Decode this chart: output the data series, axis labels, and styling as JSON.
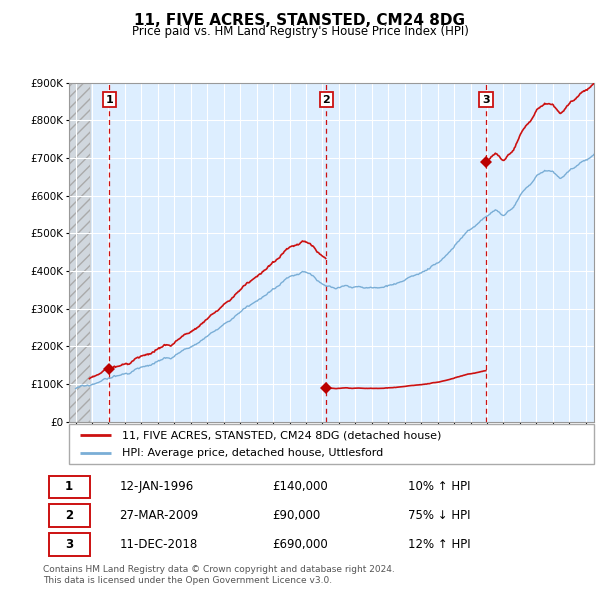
{
  "title": "11, FIVE ACRES, STANSTED, CM24 8DG",
  "subtitle": "Price paid vs. HM Land Registry's House Price Index (HPI)",
  "legend_line1": "11, FIVE ACRES, STANSTED, CM24 8DG (detached house)",
  "legend_line2": "HPI: Average price, detached house, Uttlesford",
  "sale_points": [
    {
      "date": 1996.04,
      "price": 140000,
      "label": "1"
    },
    {
      "date": 2009.23,
      "price": 90000,
      "label": "2"
    },
    {
      "date": 2018.94,
      "price": 690000,
      "label": "3"
    }
  ],
  "table_rows": [
    [
      "1",
      "12-JAN-1996",
      "£140,000",
      "10% ↑ HPI"
    ],
    [
      "2",
      "27-MAR-2009",
      "£90,000",
      "75% ↓ HPI"
    ],
    [
      "3",
      "11-DEC-2018",
      "£690,000",
      "12% ↑ HPI"
    ]
  ],
  "footer": "Contains HM Land Registry data © Crown copyright and database right 2024.\nThis data is licensed under the Open Government Licence v3.0.",
  "hpi_color": "#7aaed6",
  "price_color": "#cc1111",
  "vline_color": "#cc1111",
  "marker_color": "#bb0000",
  "ylim": [
    0,
    900000
  ],
  "xlim_left": 1993.6,
  "xlim_right": 2025.5,
  "background_plot": "#ddeeff",
  "sale_dates": [
    1996.04,
    2009.23,
    2018.94
  ],
  "sale_prices": [
    140000,
    90000,
    690000
  ]
}
